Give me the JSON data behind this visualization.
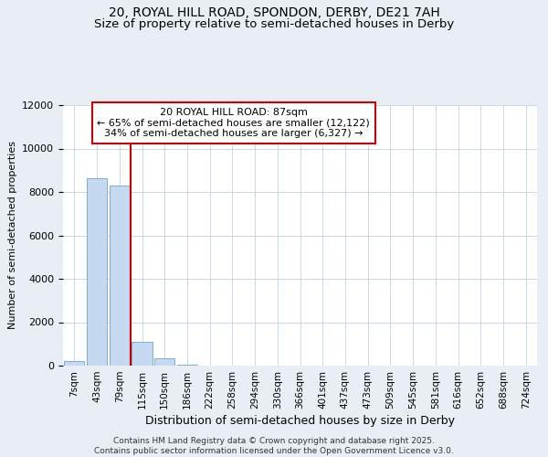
{
  "title_line1": "20, ROYAL HILL ROAD, SPONDON, DERBY, DE21 7AH",
  "title_line2": "Size of property relative to semi-detached houses in Derby",
  "xlabel": "Distribution of semi-detached houses by size in Derby",
  "ylabel": "Number of semi-detached properties",
  "bin_labels": [
    "7sqm",
    "43sqm",
    "79sqm",
    "115sqm",
    "150sqm",
    "186sqm",
    "222sqm",
    "258sqm",
    "294sqm",
    "330sqm",
    "366sqm",
    "401sqm",
    "437sqm",
    "473sqm",
    "509sqm",
    "545sqm",
    "581sqm",
    "616sqm",
    "652sqm",
    "688sqm",
    "724sqm"
  ],
  "bar_values": [
    200,
    8650,
    8300,
    1100,
    330,
    60,
    10,
    3,
    1,
    0,
    0,
    0,
    0,
    0,
    0,
    0,
    0,
    0,
    0,
    0,
    0
  ],
  "bar_color": "#c5d9f0",
  "bar_edgecolor": "#7bafd4",
  "bar_linewidth": 0.7,
  "vline_x": 2.5,
  "vline_color": "#cc0000",
  "vline_linewidth": 1.5,
  "ylim": [
    0,
    12000
  ],
  "yticks": [
    0,
    2000,
    4000,
    6000,
    8000,
    10000,
    12000
  ],
  "annotation_text": "20 ROYAL HILL ROAD: 87sqm\n← 65% of semi-detached houses are smaller (12,122)\n34% of semi-detached houses are larger (6,327) →",
  "annotation_box_color": "#ffffff",
  "annotation_box_edgecolor": "#cc0000",
  "footer_text": "Contains HM Land Registry data © Crown copyright and database right 2025.\nContains public sector information licensed under the Open Government Licence v3.0.",
  "background_color": "#e8eef4",
  "plot_background": "#ffffff",
  "grid_color": "#c8d8e8",
  "title_fontsize": 10,
  "subtitle_fontsize": 9.5
}
